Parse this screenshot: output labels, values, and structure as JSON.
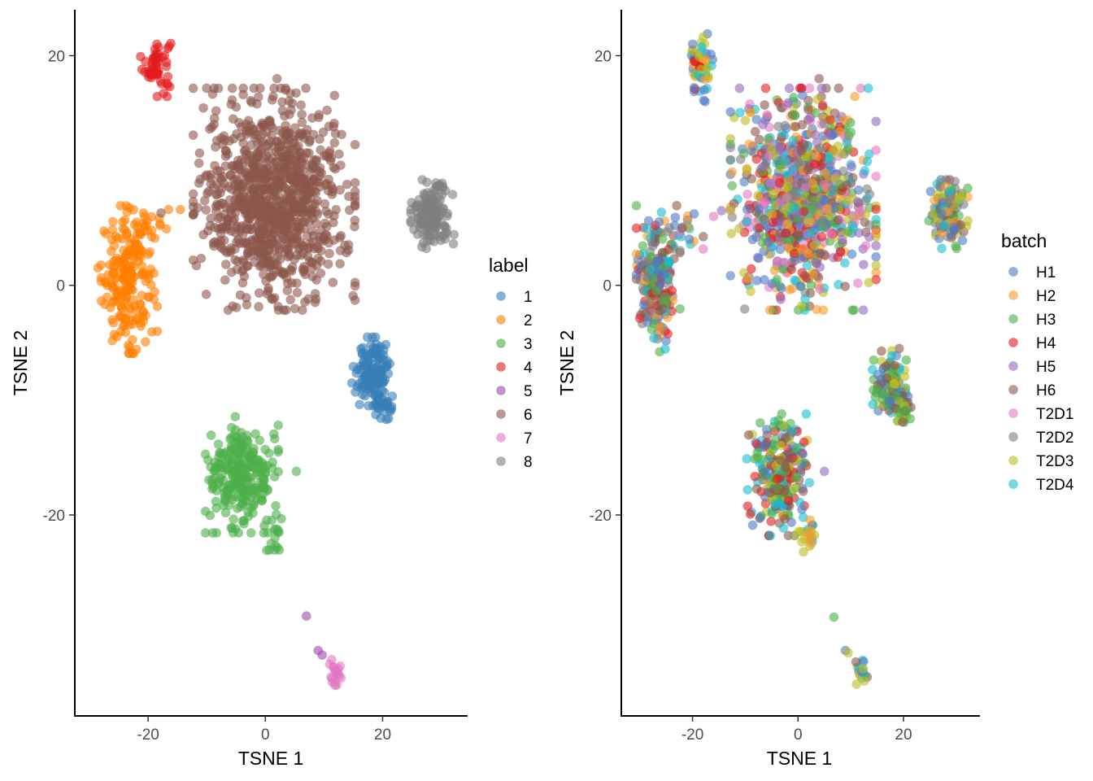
{
  "chart_data": [
    {
      "type": "scatter",
      "xlabel": "TSNE 1",
      "ylabel": "TSNE 2",
      "xlim": [
        -32.5,
        34.5
      ],
      "ylim": [
        -37.5,
        24
      ],
      "xticks": [
        "-20",
        "0",
        "20"
      ],
      "yticks": [
        "-20",
        "0",
        "20"
      ],
      "legend_title": "label",
      "legend_placement": "right",
      "grid": false,
      "point_alpha": 0.6,
      "legend": [
        {
          "key": "1",
          "color": "#377EB8"
        },
        {
          "key": "2",
          "color": "#FF7F00"
        },
        {
          "key": "3",
          "color": "#4DAF4A"
        },
        {
          "key": "4",
          "color": "#E41A1C"
        },
        {
          "key": "5",
          "color": "#984EA3"
        },
        {
          "key": "6",
          "color": "#8C564B"
        },
        {
          "key": "7",
          "color": "#E377C2"
        },
        {
          "key": "8",
          "color": "#7F7F7F"
        }
      ],
      "clusters": [
        {
          "group": "4",
          "cx": -18.5,
          "cy": 19.2,
          "sx": 1.2,
          "sy": 1.2,
          "n": 50
        },
        {
          "group": "2",
          "cx": -23.5,
          "cy": 0.5,
          "sx": 2.2,
          "sy": 2.8,
          "n": 200
        },
        {
          "group": "2",
          "cx": -19.5,
          "cy": 5.2,
          "sx": 1.8,
          "sy": 0.6,
          "n": 14
        },
        {
          "group": "6",
          "cx": 1.5,
          "cy": 7.5,
          "sx": 6.0,
          "sy": 4.2,
          "n": 950
        },
        {
          "group": "8",
          "cx": 28.5,
          "cy": 6.2,
          "sx": 1.6,
          "sy": 1.3,
          "n": 140
        },
        {
          "group": "1",
          "cx": 18.2,
          "cy": -7.5,
          "sx": 1.5,
          "sy": 1.3,
          "n": 130
        },
        {
          "group": "1",
          "cx": 20.2,
          "cy": -10.6,
          "sx": 0.9,
          "sy": 0.6,
          "n": 25
        },
        {
          "group": "3",
          "cx": -4.0,
          "cy": -16.5,
          "sx": 2.7,
          "sy": 2.2,
          "n": 260
        },
        {
          "group": "3",
          "cx": 1.5,
          "cy": -21.5,
          "sx": 0.8,
          "sy": 1.0,
          "n": 20
        },
        {
          "group": "7",
          "cx": 12.0,
          "cy": -33.8,
          "sx": 0.45,
          "sy": 0.45,
          "n": 18
        }
      ],
      "points": [
        {
          "x": -16.5,
          "y": 6.6,
          "group": "2"
        },
        {
          "x": -14.5,
          "y": 6.6,
          "group": "2"
        },
        {
          "x": -17.8,
          "y": 6.3,
          "group": "6"
        },
        {
          "x": 5.3,
          "y": -16.2,
          "group": "3"
        },
        {
          "x": 7.0,
          "y": -28.8,
          "group": "5"
        },
        {
          "x": 9.0,
          "y": -31.8,
          "group": "5"
        },
        {
          "x": 9.7,
          "y": -32.2,
          "group": "5"
        },
        {
          "x": 11.3,
          "y": -32.6,
          "group": "7"
        },
        {
          "x": 12.2,
          "y": -34.8,
          "group": "7"
        },
        {
          "x": 18.0,
          "y": -5.2,
          "group": "1"
        },
        {
          "x": -18.5,
          "y": 21.0,
          "group": "4"
        },
        {
          "x": 2.0,
          "y": 18.0,
          "group": "6"
        },
        {
          "x": 0.5,
          "y": -0.5,
          "group": "6"
        }
      ]
    },
    {
      "type": "scatter",
      "xlabel": "TSNE 1",
      "ylabel": "TSNE 2",
      "xlim": [
        -33.5,
        34.5
      ],
      "ylim": [
        -37.5,
        24
      ],
      "xticks": [
        "-20",
        "0",
        "20"
      ],
      "yticks": [
        "-20",
        "0",
        "20"
      ],
      "legend_title": "batch",
      "legend_placement": "right",
      "grid": false,
      "point_alpha": 0.6,
      "legend": [
        {
          "key": "H1",
          "color": "#4E79C4"
        },
        {
          "key": "H2",
          "color": "#F89A2B"
        },
        {
          "key": "H3",
          "color": "#4DAF4A"
        },
        {
          "key": "H4",
          "color": "#E41A1C"
        },
        {
          "key": "H5",
          "color": "#9467BD"
        },
        {
          "key": "H6",
          "color": "#8C564B"
        },
        {
          "key": "T2D1",
          "color": "#E377C2"
        },
        {
          "key": "T2D2",
          "color": "#7F7F7F"
        },
        {
          "key": "T2D3",
          "color": "#BCBD22"
        },
        {
          "key": "T2D4",
          "color": "#17BECF"
        }
      ],
      "clusters": [
        {
          "groups": [
            "H1",
            "T2D4",
            "T2D3",
            "H4",
            "H2"
          ],
          "cx": -18.5,
          "cy": 19.0,
          "sx": 1.0,
          "sy": 1.3,
          "n": 55
        },
        {
          "groups": [
            "T2D4",
            "H1",
            "H4",
            "H6",
            "H2",
            "T2D2",
            "H3"
          ],
          "cx": -26.5,
          "cy": 0.5,
          "sx": 1.8,
          "sy": 2.8,
          "n": 210
        },
        {
          "groups": [
            "H1",
            "T2D4",
            "H6",
            "T2D1",
            "H2"
          ],
          "cx": -21.0,
          "cy": 5.0,
          "sx": 1.6,
          "sy": 0.8,
          "n": 18
        },
        {
          "groups": [
            "T2D4",
            "H4",
            "H6",
            "T2D3",
            "H3",
            "H2",
            "T2D2",
            "H1",
            "T2D1",
            "H5"
          ],
          "cx": 1.0,
          "cy": 7.5,
          "sx": 6.0,
          "sy": 4.2,
          "n": 950
        },
        {
          "groups": [
            "T2D4",
            "H2",
            "H3",
            "T2D3",
            "H6",
            "H1",
            "T2D2"
          ],
          "cx": 28.5,
          "cy": 6.2,
          "sx": 1.6,
          "sy": 1.3,
          "n": 140
        },
        {
          "groups": [
            "T2D3",
            "T2D4",
            "H3",
            "H1",
            "H6"
          ],
          "cx": 17.8,
          "cy": -8.5,
          "sx": 1.6,
          "sy": 1.3,
          "n": 130
        },
        {
          "groups": [
            "H3",
            "T2D3",
            "H6"
          ],
          "cx": 20.0,
          "cy": -11.0,
          "sx": 1.0,
          "sy": 0.6,
          "n": 25
        },
        {
          "groups": [
            "T2D3",
            "H3",
            "T2D4",
            "H4",
            "H6",
            "H1"
          ],
          "cx": -3.5,
          "cy": -16.5,
          "sx": 2.7,
          "sy": 2.3,
          "n": 260
        },
        {
          "groups": [
            "T2D3",
            "T2D4",
            "H2"
          ],
          "cx": 2.0,
          "cy": -21.8,
          "sx": 0.8,
          "sy": 1.0,
          "n": 20
        },
        {
          "groups": [
            "H6",
            "H3",
            "T2D3",
            "T2D4",
            "H1"
          ],
          "cx": 12.0,
          "cy": -33.8,
          "sx": 0.5,
          "sy": 0.5,
          "n": 16
        }
      ],
      "points": [
        {
          "x": -14.5,
          "y": 6.5,
          "group": "H5"
        },
        {
          "x": -16.0,
          "y": 6.0,
          "group": "T2D1"
        },
        {
          "x": 5.0,
          "y": -16.2,
          "group": "H5"
        },
        {
          "x": 6.8,
          "y": -28.9,
          "group": "H3"
        },
        {
          "x": 9.0,
          "y": -31.8,
          "group": "H1"
        },
        {
          "x": 9.5,
          "y": -32.0,
          "group": "T2D3"
        },
        {
          "x": 11.0,
          "y": -32.8,
          "group": "H6"
        },
        {
          "x": -20.0,
          "y": 21.0,
          "group": "H1"
        },
        {
          "x": 4.0,
          "y": 18.0,
          "group": "H6"
        },
        {
          "x": -4.0,
          "y": 0.5,
          "group": "H3"
        }
      ]
    }
  ]
}
